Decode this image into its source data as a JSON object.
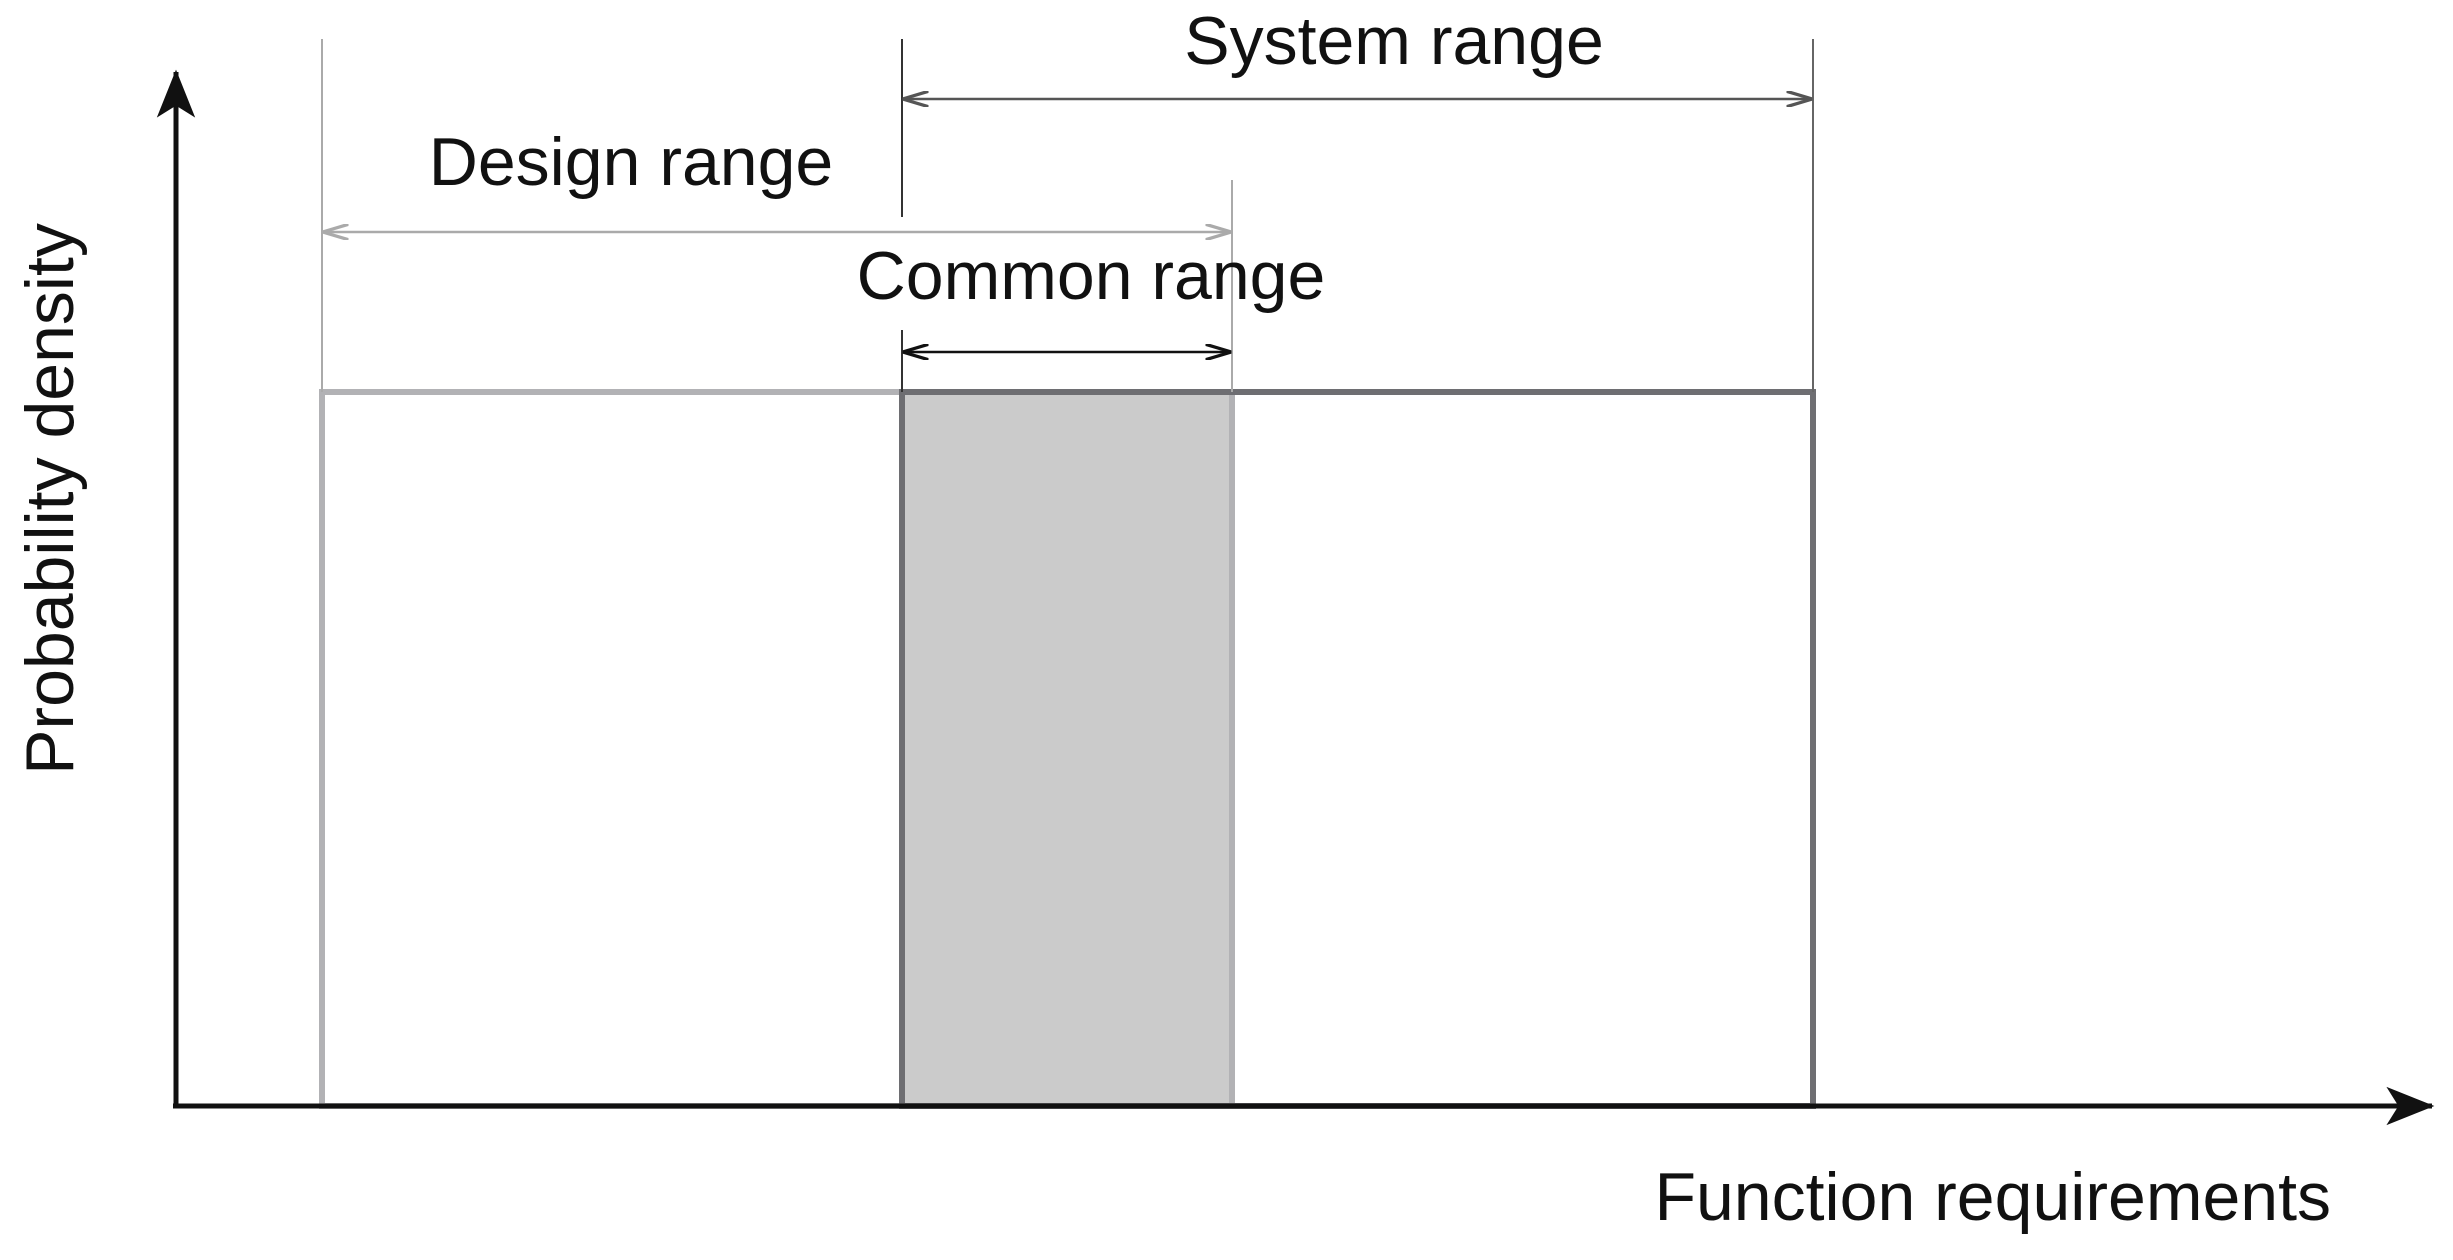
{
  "axes": {
    "y_label": "Probability density",
    "x_label": "Function requirements"
  },
  "ranges": {
    "system": "System range",
    "design": "Design range",
    "common": "Common range"
  }
}
